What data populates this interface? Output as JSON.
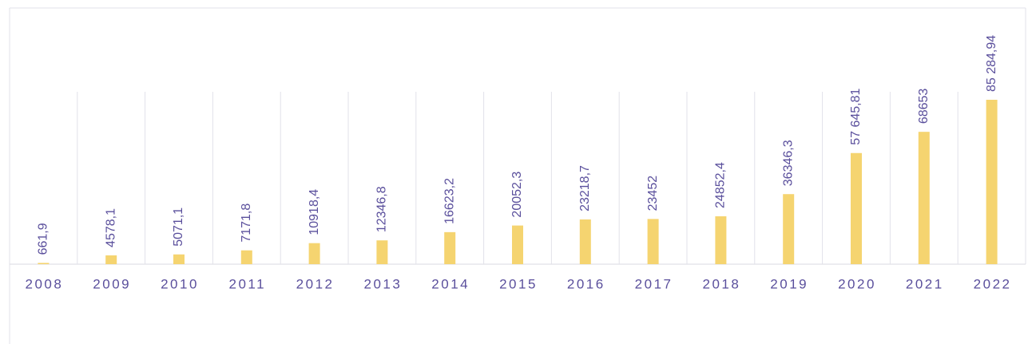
{
  "chart_data": {
    "type": "bar",
    "categories": [
      "2008",
      "2009",
      "2010",
      "2011",
      "2012",
      "2013",
      "2014",
      "2015",
      "2016",
      "2017",
      "2018",
      "2019",
      "2020",
      "2021",
      "2022"
    ],
    "values": [
      661.9,
      4578.1,
      5071.1,
      7171.8,
      10918.4,
      12346.8,
      16623.2,
      20052.3,
      23218.7,
      23452,
      24852.4,
      36346.3,
      57645.81,
      68653,
      85284.94
    ],
    "value_labels": [
      "661,9",
      "4578,1",
      "5071,1",
      "7171,8",
      "10918,4",
      "12346,8",
      "16623,2",
      "20052,3",
      "23218,7",
      "23452",
      "24852,4",
      "36346,3",
      "57 645,81",
      "68653",
      "85 284,94"
    ],
    "color": "#f5d470"
  }
}
